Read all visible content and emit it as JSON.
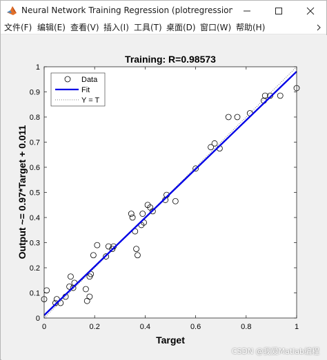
{
  "window": {
    "title": "Neural Network Training Regression (plotregression), Epoch..."
  },
  "menu": {
    "items": [
      "文件(F)",
      "编辑(E)",
      "查看(V)",
      "插入(I)",
      "工具(T)",
      "桌面(D)",
      "窗口(W)",
      "帮助(H)"
    ]
  },
  "watermark": "CSDN @我爱Matlab编程",
  "chart_data": {
    "type": "scatter",
    "title": "Training: R=0.98573",
    "xlabel": "Target",
    "ylabel": "Output ~= 0.97*Target + 0.011",
    "xlim": [
      0,
      1
    ],
    "ylim": [
      0,
      1
    ],
    "xticks": [
      "0",
      "0.2",
      "0.4",
      "0.6",
      "0.8",
      "1"
    ],
    "yticks": [
      "0",
      "0.1",
      "0.2",
      "0.3",
      "0.4",
      "0.5",
      "0.6",
      "0.7",
      "0.8",
      "0.9",
      "1"
    ],
    "legend_position": "top-left",
    "series": [
      {
        "name": "Data",
        "marker": "circle",
        "color": "#000000",
        "points": [
          [
            0.0,
            0.075
          ],
          [
            0.01,
            0.11
          ],
          [
            0.045,
            0.06
          ],
          [
            0.05,
            0.075
          ],
          [
            0.065,
            0.06
          ],
          [
            0.085,
            0.085
          ],
          [
            0.1,
            0.125
          ],
          [
            0.105,
            0.165
          ],
          [
            0.115,
            0.12
          ],
          [
            0.12,
            0.14
          ],
          [
            0.165,
            0.115
          ],
          [
            0.17,
            0.068
          ],
          [
            0.18,
            0.085
          ],
          [
            0.18,
            0.165
          ],
          [
            0.185,
            0.175
          ],
          [
            0.195,
            0.25
          ],
          [
            0.21,
            0.29
          ],
          [
            0.245,
            0.245
          ],
          [
            0.255,
            0.285
          ],
          [
            0.27,
            0.275
          ],
          [
            0.275,
            0.285
          ],
          [
            0.345,
            0.415
          ],
          [
            0.35,
            0.4
          ],
          [
            0.36,
            0.345
          ],
          [
            0.365,
            0.275
          ],
          [
            0.37,
            0.25
          ],
          [
            0.385,
            0.37
          ],
          [
            0.39,
            0.415
          ],
          [
            0.395,
            0.38
          ],
          [
            0.41,
            0.45
          ],
          [
            0.42,
            0.44
          ],
          [
            0.43,
            0.425
          ],
          [
            0.48,
            0.47
          ],
          [
            0.485,
            0.49
          ],
          [
            0.52,
            0.465
          ],
          [
            0.6,
            0.595
          ],
          [
            0.66,
            0.68
          ],
          [
            0.675,
            0.695
          ],
          [
            0.695,
            0.675
          ],
          [
            0.73,
            0.8
          ],
          [
            0.765,
            0.8
          ],
          [
            0.815,
            0.815
          ],
          [
            0.87,
            0.865
          ],
          [
            0.875,
            0.885
          ],
          [
            0.895,
            0.885
          ],
          [
            0.935,
            0.885
          ],
          [
            1.0,
            0.915
          ]
        ]
      },
      {
        "name": "Fit",
        "type": "line",
        "color": "#0000e6",
        "slope": 0.97,
        "intercept": 0.011
      },
      {
        "name": "Y = T",
        "type": "line",
        "style": "dotted",
        "color": "#555555",
        "slope": 1,
        "intercept": 0
      }
    ],
    "grid": false
  }
}
